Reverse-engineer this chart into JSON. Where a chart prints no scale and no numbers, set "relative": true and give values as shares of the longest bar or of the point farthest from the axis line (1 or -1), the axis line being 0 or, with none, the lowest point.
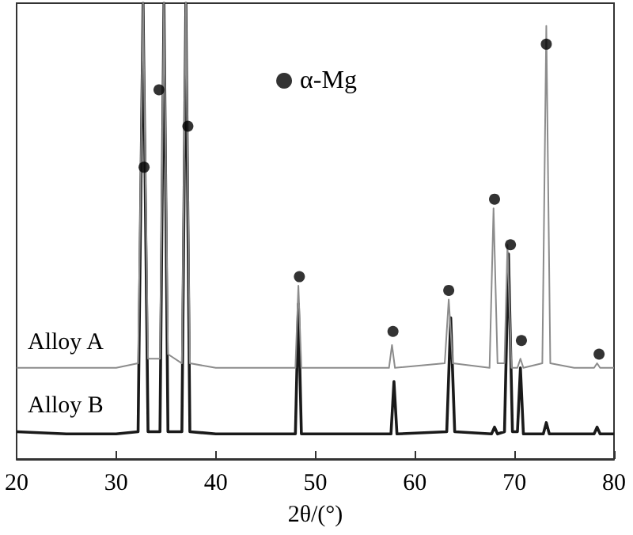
{
  "chart_data": {
    "type": "line",
    "xlabel": "2θ/(°)",
    "relative": true,
    "xlim": [
      20,
      80
    ],
    "xticks": [
      20,
      30,
      40,
      50,
      60,
      70,
      80
    ],
    "grid": false,
    "legend": "top",
    "marker": "none",
    "line_style": "solid",
    "series": [
      {
        "name": "Alloy A",
        "color": "#8c8c8c",
        "x": [
          20,
          25,
          30,
          32.2,
          32.7,
          33.2,
          34.4,
          34.8,
          35.2,
          36.6,
          37.0,
          37.4,
          40,
          45,
          48.0,
          48.3,
          48.6,
          52,
          57.4,
          57.7,
          58,
          63.0,
          63.4,
          63.8,
          67.5,
          67.9,
          68.3,
          69.0,
          69.3,
          69.7,
          70.3,
          70.6,
          70.9,
          72.8,
          73.2,
          73.6,
          76,
          78,
          78.3,
          78.6,
          80
        ],
        "values": [
          0.2,
          0.2,
          0.2,
          0.21,
          1,
          0.22,
          0.22,
          1,
          0.23,
          0.21,
          1,
          0.21,
          0.2,
          0.2,
          0.2,
          0.38,
          0.2,
          0.2,
          0.2,
          0.25,
          0.2,
          0.21,
          0.35,
          0.21,
          0.2,
          0.55,
          0.21,
          0.21,
          0.47,
          0.2,
          0.2,
          0.22,
          0.2,
          0.21,
          0.95,
          0.21,
          0.2,
          0.2,
          0.21,
          0.2,
          0.2
        ]
      },
      {
        "name": "Alloy B",
        "color": "#1a1a1a",
        "x": [
          20,
          25,
          30,
          32.2,
          32.7,
          33.2,
          34.4,
          34.8,
          35.2,
          36.6,
          37.0,
          37.4,
          40,
          45,
          48.0,
          48.3,
          48.6,
          52,
          57.6,
          57.9,
          58.2,
          63.2,
          63.6,
          64.0,
          67.7,
          68.0,
          68.3,
          69.0,
          69.4,
          69.8,
          70.3,
          70.6,
          70.9,
          72.9,
          73.2,
          73.5,
          76,
          78,
          78.3,
          78.6,
          80
        ],
        "values": [
          0.06,
          0.055,
          0.055,
          0.06,
          1,
          0.06,
          0.06,
          1,
          0.06,
          0.06,
          1,
          0.06,
          0.055,
          0.055,
          0.055,
          0.34,
          0.055,
          0.055,
          0.055,
          0.17,
          0.055,
          0.06,
          0.31,
          0.06,
          0.055,
          0.07,
          0.055,
          0.06,
          0.45,
          0.06,
          0.06,
          0.2,
          0.055,
          0.055,
          0.08,
          0.055,
          0.055,
          0.055,
          0.07,
          0.055,
          0.055
        ]
      },
      {
        "name": "α-Mg",
        "type": "scatter",
        "marker": "circle",
        "color": "#000000",
        "x": [
          32.8,
          34.3,
          37.2,
          48.4,
          57.8,
          63.4,
          68.0,
          69.6,
          70.7,
          73.2,
          78.5
        ],
        "values": [
          0.64,
          0.81,
          0.73,
          0.4,
          0.28,
          0.37,
          0.57,
          0.47,
          0.26,
          0.91,
          0.23
        ]
      }
    ]
  }
}
